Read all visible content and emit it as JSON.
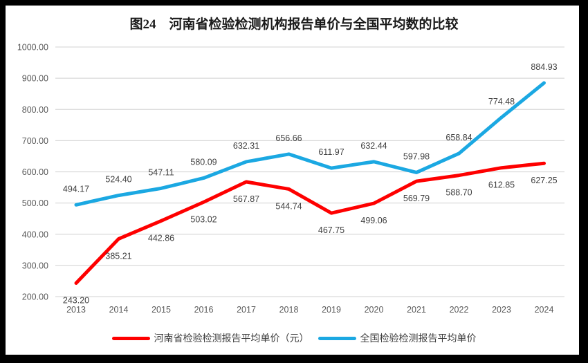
{
  "window": {
    "frame_color": "#000000",
    "background": "#ffffff"
  },
  "chart_data": {
    "type": "line",
    "title": "图24　河南省检验检测机构报告单价与全国平均数的比较",
    "categories": [
      "2013",
      "2014",
      "2015",
      "2016",
      "2017",
      "2018",
      "2019",
      "2020",
      "2021",
      "2022",
      "2023",
      "2024"
    ],
    "series": [
      {
        "name": "河南省检验检测报告平均单价（元）",
        "color": "#fe0000",
        "label_position": "below",
        "values": [
          243.2,
          385.21,
          442.86,
          503.02,
          567.87,
          544.74,
          467.75,
          499.06,
          569.79,
          588.7,
          612.85,
          627.25
        ]
      },
      {
        "name": "全国检验检测报告平均单价",
        "color": "#1ba8e2",
        "label_position": "above",
        "values": [
          494.17,
          524.4,
          547.11,
          580.09,
          632.31,
          656.66,
          611.97,
          632.44,
          597.98,
          658.84,
          774.48,
          884.93
        ]
      }
    ],
    "ylim": [
      200,
      1000
    ],
    "ytick_step": 100,
    "ytick_labels": [
      "200.00",
      "300.00",
      "400.00",
      "500.00",
      "600.00",
      "700.00",
      "800.00",
      "900.00",
      "1000.00"
    ],
    "grid": "horizontal",
    "gridline_color": "#d9d9d9",
    "axis_text_color": "#595959",
    "data_label_color": "#404040",
    "line_width": 5,
    "legend_position": "bottom"
  }
}
